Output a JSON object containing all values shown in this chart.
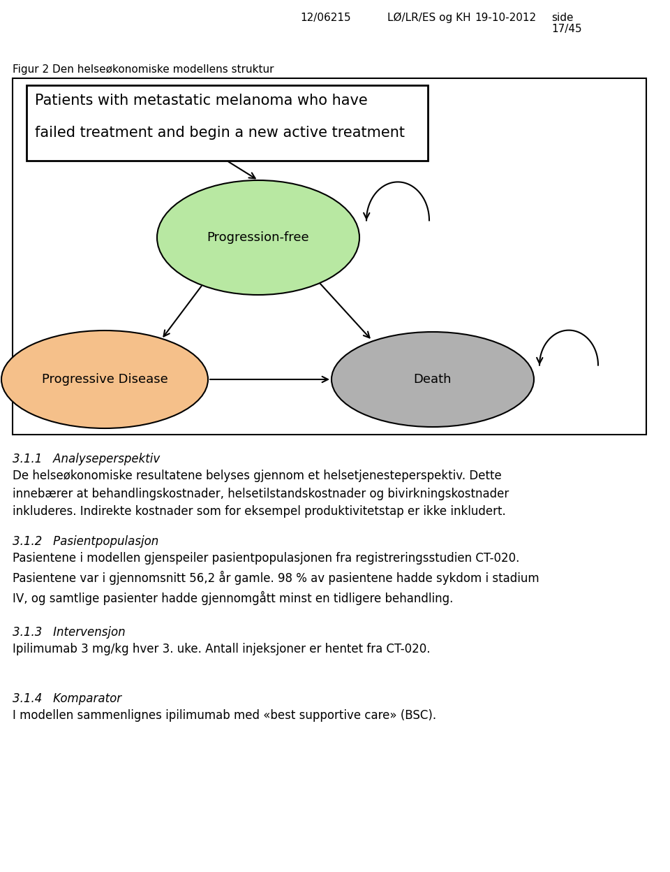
{
  "header_left": "12/06215",
  "header_mid": "LØ/LR/ES og KH",
  "header_date": "19-10-2012",
  "header_side": "side",
  "header_page": "17/45",
  "fig_caption": "Figur 2 Den helseøkonomiske modellens struktur",
  "box_text_line1": "Patients with metastatic melanoma who have",
  "box_text_line2": "failed treatment and begin a new active treatment",
  "node_pf_label": "Progression-free",
  "node_pd_label": "Progressive Disease",
  "node_death_label": "Death",
  "pf_color": "#b8e8a2",
  "pd_color": "#f5c08a",
  "death_color": "#b0b0b0",
  "section_311_title": "3.1.1   Analyseperspektiv",
  "section_311_text": "De helseøkonomiske resultatene belyses gjennom et helsetjenesteperspektiv. Dette\ninnebærer at behandlingskostnader, helsetilstandskostnader og bivirkningskostnader\ninkluderes. Indirekte kostnader som for eksempel produktivitetstap er ikke inkludert.",
  "section_312_title": "3.1.2   Pasientpopulasjon",
  "section_312_text": "Pasientene i modellen gjenspeiler pasientpopulasjonen fra registreringsstudien CT-020.\nPasientene var i gjennomsnitt 56,2 år gamle. 98 % av pasientene hadde sykdom i stadium\nIV, og samtlige pasienter hadde gjennomgått minst en tidligere behandling.",
  "section_313_title": "3.1.3   Intervensjon",
  "section_313_text": "Ipilimumab 3 mg/kg hver 3. uke. Antall injeksjoner er hentet fra CT-020.",
  "section_314_title": "3.1.4   Komparator",
  "section_314_text": "I modellen sammenlignes ipilimumab med «best supportive care» (BSC).",
  "bg_color": "#ffffff",
  "text_color": "#000000",
  "font_size_header": 11,
  "font_size_caption": 11,
  "font_size_body": 12,
  "font_size_node": 13,
  "font_size_section": 12
}
